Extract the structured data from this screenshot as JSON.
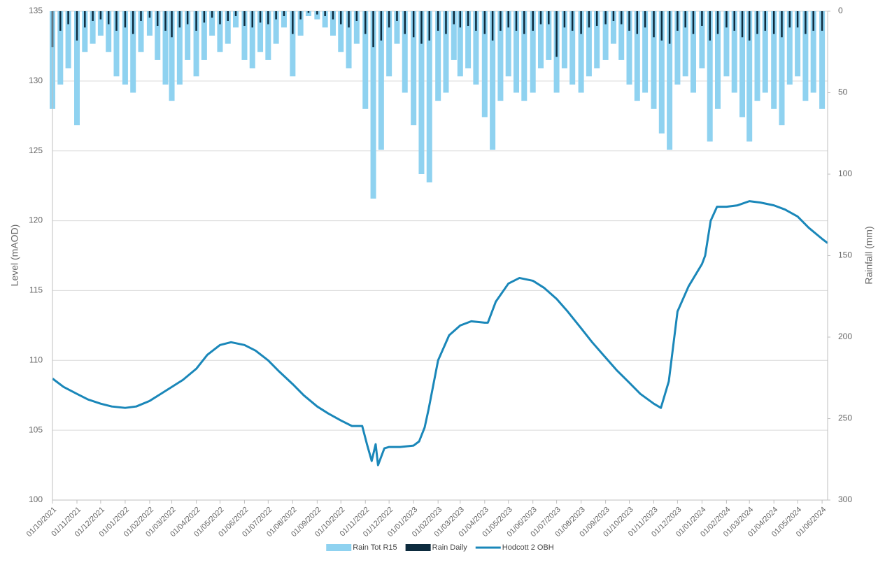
{
  "chart_data": {
    "type": "combo",
    "y_label": "Level (mAOD)",
    "y2_label": "Rainfall (mm)",
    "xlim": [
      "01/10/2021",
      "08/06/2024"
    ],
    "xticks": [
      "01/10/2021",
      "01/11/2021",
      "01/12/2021",
      "01/01/2022",
      "01/02/2022",
      "01/03/2022",
      "01/04/2022",
      "01/05/2022",
      "01/06/2022",
      "01/07/2022",
      "01/08/2022",
      "01/09/2022",
      "01/10/2022",
      "01/11/2022",
      "01/12/2022",
      "01/01/2023",
      "01/02/2023",
      "01/03/2023",
      "01/04/2023",
      "01/05/2023",
      "01/06/2023",
      "01/07/2023",
      "01/08/2023",
      "01/09/2023",
      "01/10/2023",
      "01/11/2023",
      "01/12/2023",
      "01/01/2024",
      "01/02/2024",
      "01/03/2024",
      "01/04/2024",
      "01/05/2024",
      "01/06/2024"
    ],
    "ylim": [
      100,
      135
    ],
    "yticks": [
      100,
      105,
      110,
      115,
      120,
      125,
      130,
      135
    ],
    "y2lim": [
      0,
      300
    ],
    "y2ticks": [
      0,
      50,
      100,
      150,
      200,
      250,
      300
    ],
    "y2_inverted": true,
    "grid": true,
    "legend": "bottom",
    "x": [
      "01/10/2021",
      "11/10/2021",
      "21/10/2021",
      "01/11/2021",
      "11/11/2021",
      "21/11/2021",
      "01/12/2021",
      "11/12/2021",
      "21/12/2021",
      "01/01/2022",
      "11/01/2022",
      "21/01/2022",
      "01/02/2022",
      "11/02/2022",
      "21/02/2022",
      "01/03/2022",
      "11/03/2022",
      "21/03/2022",
      "01/04/2022",
      "11/04/2022",
      "21/04/2022",
      "01/05/2022",
      "11/05/2022",
      "21/05/2022",
      "01/06/2022",
      "11/06/2022",
      "21/06/2022",
      "01/07/2022",
      "11/07/2022",
      "21/07/2022",
      "01/08/2022",
      "11/08/2022",
      "21/08/2022",
      "01/09/2022",
      "11/09/2022",
      "21/09/2022",
      "01/10/2022",
      "11/10/2022",
      "21/10/2022",
      "01/11/2022",
      "11/11/2022",
      "21/11/2022",
      "01/12/2022",
      "11/12/2022",
      "21/12/2022",
      "01/01/2023",
      "11/01/2023",
      "21/01/2023",
      "01/02/2023",
      "11/02/2023",
      "21/02/2023",
      "01/03/2023",
      "11/03/2023",
      "21/03/2023",
      "01/04/2023",
      "11/04/2023",
      "21/04/2023",
      "01/05/2023",
      "11/05/2023",
      "21/05/2023",
      "01/06/2023",
      "11/06/2023",
      "21/06/2023",
      "01/07/2023",
      "11/07/2023",
      "21/07/2023",
      "01/08/2023",
      "11/08/2023",
      "21/08/2023",
      "01/09/2023",
      "11/09/2023",
      "21/09/2023",
      "01/10/2023",
      "11/10/2023",
      "21/10/2023",
      "01/11/2023",
      "11/11/2023",
      "21/11/2023",
      "01/12/2023",
      "11/12/2023",
      "21/12/2023",
      "01/01/2024",
      "11/01/2024",
      "21/01/2024",
      "01/02/2024",
      "11/02/2024",
      "21/02/2024",
      "01/03/2024",
      "11/03/2024",
      "21/03/2024",
      "01/04/2024",
      "11/04/2024",
      "21/04/2024",
      "01/05/2024",
      "11/05/2024",
      "21/05/2024",
      "01/06/2024"
    ],
    "series": [
      {
        "name": "Rain Tot R15",
        "type": "bar",
        "axis": "y2",
        "color": "#8fd2f0",
        "values": [
          60,
          45,
          35,
          70,
          25,
          20,
          15,
          25,
          40,
          45,
          50,
          25,
          15,
          30,
          45,
          55,
          45,
          30,
          40,
          30,
          15,
          25,
          20,
          10,
          30,
          35,
          25,
          30,
          20,
          10,
          40,
          15,
          3,
          5,
          10,
          15,
          25,
          35,
          20,
          60,
          115,
          85,
          40,
          20,
          50,
          70,
          100,
          105,
          55,
          50,
          30,
          40,
          35,
          45,
          65,
          85,
          55,
          40,
          50,
          55,
          50,
          35,
          30,
          50,
          35,
          45,
          50,
          40,
          35,
          30,
          20,
          30,
          45,
          55,
          50,
          60,
          75,
          85,
          45,
          40,
          50,
          35,
          80,
          60,
          40,
          50,
          65,
          80,
          55,
          50,
          60,
          70,
          45,
          40,
          55,
          50,
          60
        ]
      },
      {
        "name": "Rain Daily",
        "type": "bar",
        "axis": "y2",
        "color": "#0d2b3e",
        "values": [
          22,
          12,
          8,
          18,
          10,
          6,
          5,
          8,
          12,
          10,
          14,
          6,
          4,
          9,
          12,
          16,
          10,
          8,
          12,
          7,
          4,
          8,
          6,
          3,
          9,
          10,
          7,
          8,
          5,
          3,
          14,
          5,
          1,
          2,
          3,
          5,
          8,
          10,
          6,
          14,
          22,
          18,
          10,
          6,
          14,
          16,
          20,
          18,
          12,
          14,
          8,
          10,
          9,
          12,
          14,
          18,
          12,
          10,
          12,
          14,
          12,
          8,
          8,
          28,
          10,
          12,
          14,
          10,
          9,
          8,
          6,
          8,
          12,
          14,
          10,
          16,
          18,
          20,
          12,
          10,
          14,
          9,
          18,
          14,
          10,
          12,
          16,
          18,
          14,
          12,
          14,
          16,
          10,
          10,
          14,
          12,
          12
        ]
      },
      {
        "name": "Hodcott 2 OBH",
        "type": "line",
        "axis": "y",
        "color": "#1a87b9",
        "x": [
          "01/10/2021",
          "15/10/2021",
          "01/11/2021",
          "15/11/2021",
          "01/12/2021",
          "15/12/2021",
          "01/01/2022",
          "15/01/2022",
          "01/02/2022",
          "15/02/2022",
          "01/03/2022",
          "15/03/2022",
          "01/04/2022",
          "15/04/2022",
          "01/05/2022",
          "15/05/2022",
          "01/06/2022",
          "15/06/2022",
          "01/07/2022",
          "15/07/2022",
          "01/08/2022",
          "15/08/2022",
          "01/09/2022",
          "15/09/2022",
          "01/10/2022",
          "15/10/2022",
          "28/10/2022",
          "03/11/2022",
          "09/11/2022",
          "14/11/2022",
          "17/11/2022",
          "25/11/2022",
          "01/12/2022",
          "15/12/2022",
          "01/01/2023",
          "08/01/2023",
          "15/01/2023",
          "20/01/2023",
          "01/02/2023",
          "15/02/2023",
          "01/03/2023",
          "15/03/2023",
          "01/04/2023",
          "05/04/2023",
          "15/04/2023",
          "01/05/2023",
          "15/05/2023",
          "01/06/2023",
          "15/06/2023",
          "01/07/2023",
          "15/07/2023",
          "01/08/2023",
          "15/08/2023",
          "01/09/2023",
          "15/09/2023",
          "01/10/2023",
          "15/10/2023",
          "01/11/2023",
          "10/11/2023",
          "20/11/2023",
          "01/12/2023",
          "15/12/2023",
          "01/01/2024",
          "05/01/2024",
          "12/01/2024",
          "20/01/2024",
          "01/02/2024",
          "15/02/2024",
          "01/03/2024",
          "15/03/2024",
          "01/04/2024",
          "15/04/2024",
          "01/05/2024",
          "15/05/2024",
          "01/06/2024",
          "08/06/2024"
        ],
        "values": [
          108.7,
          108.1,
          107.6,
          107.2,
          106.9,
          106.7,
          106.6,
          106.7,
          107.1,
          107.6,
          108.1,
          108.6,
          109.4,
          110.4,
          111.1,
          111.3,
          111.1,
          110.7,
          110.0,
          109.2,
          108.3,
          107.5,
          106.7,
          106.2,
          105.7,
          105.3,
          105.3,
          104.0,
          102.8,
          104.0,
          102.5,
          103.7,
          103.8,
          103.8,
          103.9,
          104.2,
          105.2,
          106.5,
          110.0,
          111.8,
          112.5,
          112.8,
          112.7,
          112.7,
          114.2,
          115.5,
          115.9,
          115.7,
          115.2,
          114.4,
          113.5,
          112.3,
          111.3,
          110.2,
          109.3,
          108.4,
          107.6,
          106.9,
          106.6,
          108.5,
          113.5,
          115.3,
          116.9,
          117.5,
          120.0,
          121.0,
          121.0,
          121.1,
          121.4,
          121.3,
          121.1,
          120.8,
          120.3,
          119.5,
          118.7,
          118.4
        ]
      }
    ]
  }
}
